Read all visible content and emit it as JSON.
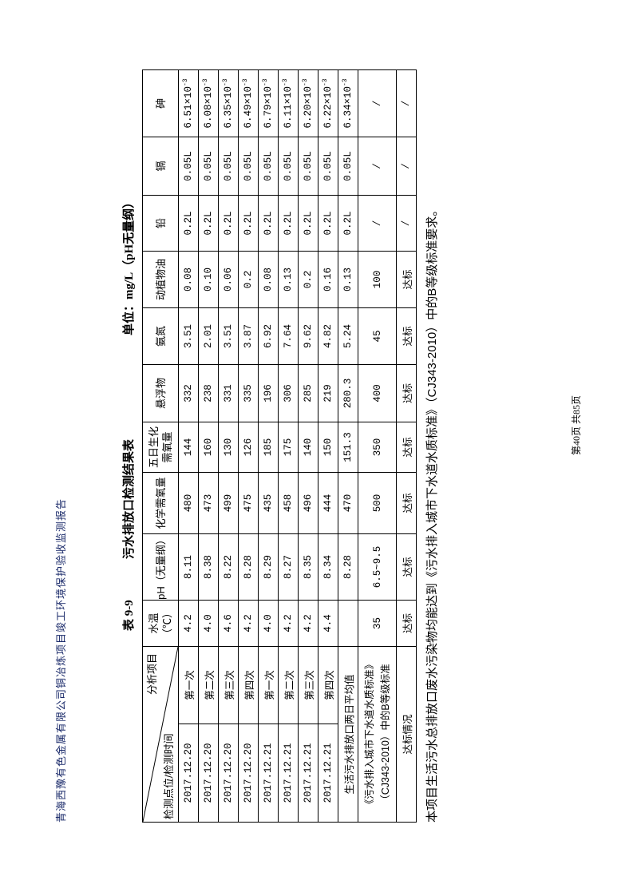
{
  "header": "青海西豫有色金属有限公司铜冶炼项目竣工环境保护验收监测报告",
  "table_number": "表 9-9",
  "table_title": "污水排放口检测结果表",
  "unit": "单位：mg/L（pH无量纲）",
  "columns": {
    "corner_top": "分析项目",
    "corner_bottom": "检测点位/检测时间",
    "items": [
      "水温（℃）",
      "pH（无量纲）",
      "化学需氧量",
      "五日生化需氧量",
      "悬浮物",
      "氨氮",
      "动植物油",
      "铅",
      "镉",
      "砷"
    ]
  },
  "rows": [
    {
      "date": "2017.12.20",
      "round": "第一次",
      "values": [
        "4.2",
        "8.11",
        "480",
        "144",
        "332",
        "3.51",
        "0.08",
        "0.2L",
        "0.05L",
        "6.51×10"
      ]
    },
    {
      "date": "2017.12.20",
      "round": "第二次",
      "values": [
        "4.0",
        "8.38",
        "473",
        "160",
        "238",
        "2.01",
        "0.10",
        "0.2L",
        "0.05L",
        "6.08×10"
      ]
    },
    {
      "date": "2017.12.20",
      "round": "第三次",
      "values": [
        "4.6",
        "8.22",
        "499",
        "130",
        "331",
        "3.51",
        "0.06",
        "0.2L",
        "0.05L",
        "6.35×10"
      ]
    },
    {
      "date": "2017.12.20",
      "round": "第四次",
      "values": [
        "4.2",
        "8.28",
        "475",
        "126",
        "335",
        "3.87",
        "0.2",
        "0.2L",
        "0.05L",
        "6.49×10"
      ]
    },
    {
      "date": "2017.12.21",
      "round": "第一次",
      "values": [
        "4.0",
        "8.29",
        "435",
        "185",
        "196",
        "6.92",
        "0.08",
        "0.2L",
        "0.05L",
        "6.79×10"
      ]
    },
    {
      "date": "2017.12.21",
      "round": "第二次",
      "values": [
        "4.2",
        "8.27",
        "458",
        "175",
        "306",
        "7.64",
        "0.13",
        "0.2L",
        "0.05L",
        "6.11×10"
      ]
    },
    {
      "date": "2017.12.21",
      "round": "第三次",
      "values": [
        "4.2",
        "8.35",
        "496",
        "140",
        "285",
        "9.62",
        "0.2",
        "0.2L",
        "0.05L",
        "6.20×10"
      ]
    },
    {
      "date": "2017.12.21",
      "round": "第四次",
      "values": [
        "4.4",
        "8.34",
        "444",
        "150",
        "219",
        "4.82",
        "0.16",
        "0.2L",
        "0.05L",
        "6.22×10"
      ]
    }
  ],
  "exponent": "-3",
  "average": {
    "label": "生活污水排放口两日平均值",
    "values": [
      "",
      "8.28",
      "470",
      "151.3",
      "280.3",
      "5.24",
      "0.13",
      "0.2L",
      "0.05L",
      "6.34×10"
    ]
  },
  "standard": {
    "label": "《污水排入城市下水道水质标准》（CJ343-2010）中的B等级标准",
    "values": [
      "35",
      "6.5~9.5",
      "500",
      "350",
      "400",
      "45",
      "100",
      "/",
      "/",
      "/"
    ]
  },
  "compliance": {
    "label": "达标情况",
    "values": [
      "达标",
      "达标",
      "达标",
      "达标",
      "达标",
      "达标",
      "达标",
      "/",
      "/",
      "/"
    ]
  },
  "caption": "本项目生活污水总排放口废水污染物均能达到《污水排入城市下水道水质标准》（CJ343-2010）中的B等级标准要求。",
  "footer": "第40页  共85页"
}
